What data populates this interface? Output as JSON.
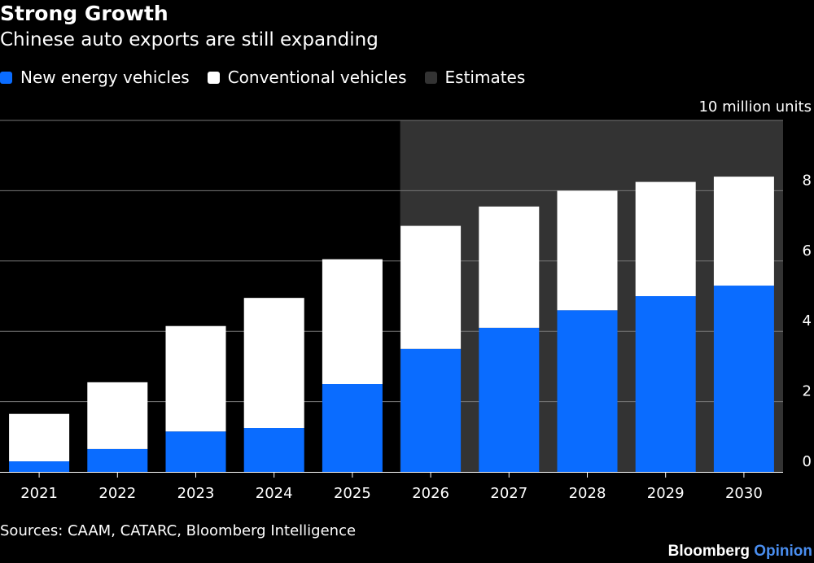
{
  "title": "Strong Growth",
  "subtitle": "Chinese auto exports are still expanding",
  "legend": [
    {
      "label": "New energy vehicles",
      "color": "#0a6cff"
    },
    {
      "label": "Conventional vehicles",
      "color": "#ffffff"
    },
    {
      "label": "Estimates",
      "color": "#333333"
    }
  ],
  "unit_label": "10 million units",
  "source": "Sources: CAAM, CATARC, Bloomberg Intelligence",
  "brand": {
    "name": "Bloomberg",
    "product": "Opinion"
  },
  "chart_data": {
    "type": "bar",
    "stacked": true,
    "title": "Strong Growth",
    "subtitle": "Chinese auto exports are still expanding",
    "ylabel": "10 million units",
    "categories": [
      "2021",
      "2022",
      "2023",
      "2024",
      "2025",
      "2026",
      "2027",
      "2028",
      "2029",
      "2030"
    ],
    "series": [
      {
        "name": "New energy vehicles",
        "color": "#0a6cff",
        "values": [
          0.3,
          0.65,
          1.15,
          1.25,
          2.5,
          3.5,
          4.1,
          4.6,
          5.0,
          5.3
        ]
      },
      {
        "name": "Conventional vehicles",
        "color": "#ffffff",
        "values": [
          1.35,
          1.9,
          3.0,
          3.7,
          3.55,
          3.5,
          3.45,
          3.4,
          3.25,
          3.1
        ]
      }
    ],
    "totals": [
      1.65,
      2.55,
      4.15,
      4.95,
      6.05,
      7.0,
      7.55,
      8.0,
      8.25,
      8.4
    ],
    "estimate_range": [
      "2026",
      "2030"
    ],
    "estimate_color": "#333333",
    "ylim": [
      0,
      10
    ],
    "yticks": [
      0,
      2,
      4,
      6,
      8
    ],
    "y_axis_side": "right",
    "grid": true
  }
}
